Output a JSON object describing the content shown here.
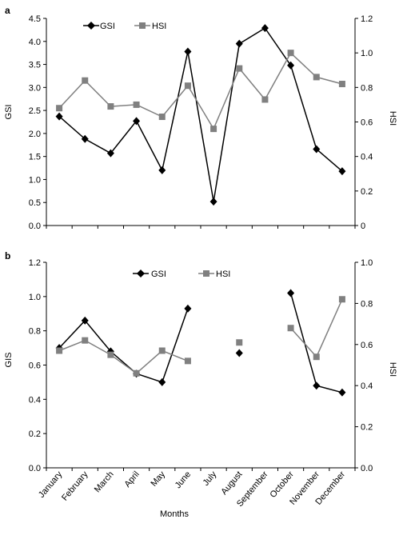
{
  "chart_data": [
    {
      "type": "line",
      "panel_label": "a",
      "categories": [
        "January",
        "February",
        "March",
        "April",
        "May",
        "June",
        "July",
        "August",
        "September",
        "October",
        "November",
        "December"
      ],
      "y_left": {
        "label": "GSI",
        "ylim": [
          0,
          4.5
        ],
        "ticks": [
          "0.0",
          "0.5",
          "1.0",
          "1.5",
          "2.0",
          "2.5",
          "3.0",
          "3.5",
          "4.0",
          "4.5"
        ]
      },
      "y_right": {
        "label": "HSI",
        "ylim": [
          0,
          1.2
        ],
        "ticks": [
          "0",
          "0.2",
          "0.4",
          "0.6",
          "0.8",
          "1.0",
          "1.2"
        ]
      },
      "legend": [
        "GSI",
        "HSI"
      ],
      "legend_position": "top-left",
      "series": [
        {
          "name": "GSI",
          "axis": "left",
          "marker": "diamond",
          "color": "#000000",
          "values": [
            2.37,
            1.88,
            1.57,
            2.27,
            1.2,
            3.78,
            0.52,
            3.95,
            4.29,
            3.48,
            1.66,
            1.18
          ]
        },
        {
          "name": "HSI",
          "axis": "right",
          "marker": "square",
          "color": "#808080",
          "values": [
            0.68,
            0.84,
            0.69,
            0.7,
            0.63,
            0.81,
            0.56,
            0.91,
            0.73,
            1.0,
            0.86,
            0.82
          ]
        }
      ]
    },
    {
      "type": "line",
      "panel_label": "b",
      "categories": [
        "January",
        "February",
        "March",
        "April",
        "May",
        "June",
        "July",
        "August",
        "September",
        "October",
        "November",
        "December"
      ],
      "xlabel": "Months",
      "y_left": {
        "label": "GIS",
        "ylim": [
          0,
          1.2
        ],
        "ticks": [
          "0.0",
          "0.2",
          "0.4",
          "0.6",
          "0.8",
          "1.0",
          "1.2"
        ]
      },
      "y_right": {
        "label": "HSI",
        "ylim": [
          0,
          1.0
        ],
        "ticks": [
          "0.0",
          "0.2",
          "0.4",
          "0.6",
          "0.8",
          "1.0"
        ]
      },
      "legend": [
        "GSI",
        "HSI"
      ],
      "legend_position": "top-center",
      "series": [
        {
          "name": "GSI",
          "axis": "left",
          "marker": "diamond",
          "color": "#000000",
          "values": [
            0.7,
            0.86,
            0.68,
            0.55,
            0.5,
            0.93,
            null,
            0.67,
            null,
            1.02,
            0.48,
            0.44
          ]
        },
        {
          "name": "HSI",
          "axis": "right",
          "marker": "square",
          "color": "#808080",
          "values": [
            0.57,
            0.62,
            0.55,
            0.46,
            0.57,
            0.52,
            null,
            0.61,
            null,
            0.68,
            0.54,
            0.82
          ]
        }
      ]
    }
  ]
}
